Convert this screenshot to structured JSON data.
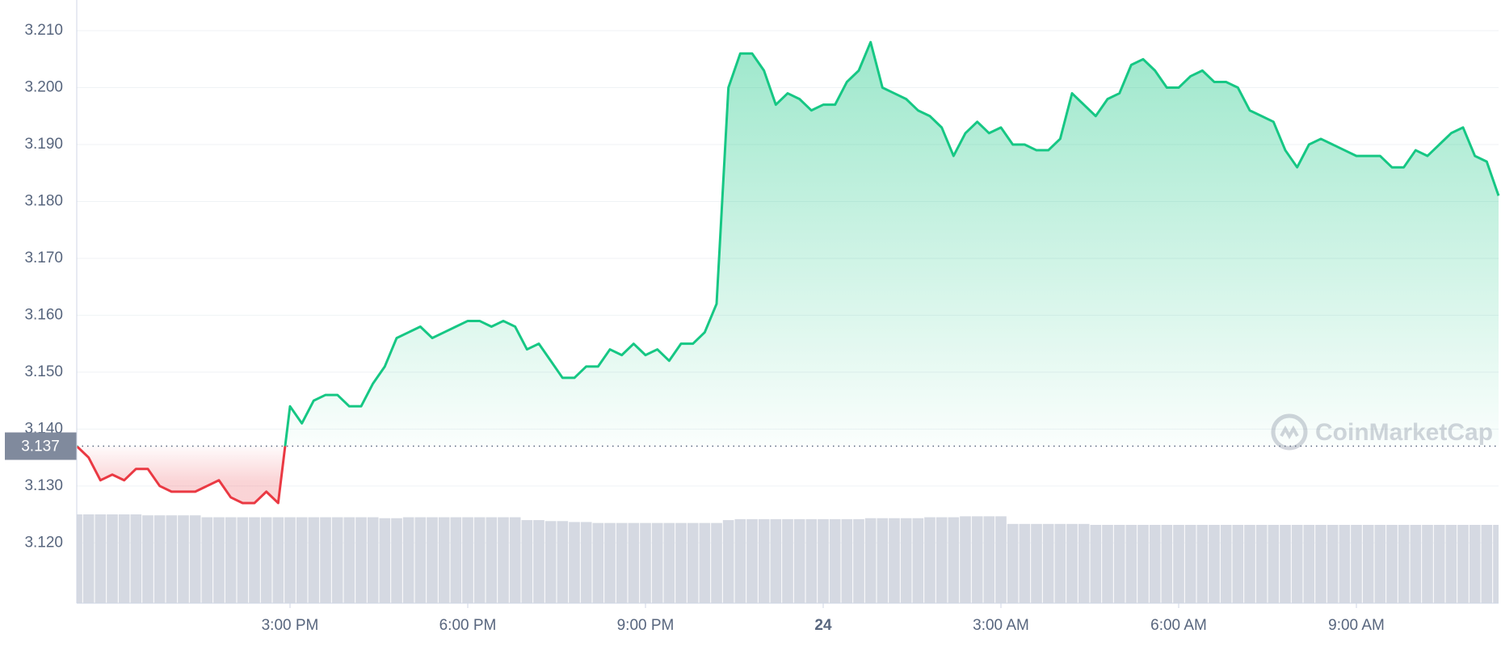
{
  "chart_data": {
    "type": "line",
    "x": [
      11.4,
      11.6,
      11.8,
      12.0,
      12.2,
      12.4,
      12.6,
      12.8,
      13.0,
      13.2,
      13.4,
      13.6,
      13.8,
      14.0,
      14.2,
      14.4,
      14.6,
      14.8,
      15.0,
      15.2,
      15.4,
      15.6,
      15.8,
      16.0,
      16.2,
      16.4,
      16.6,
      16.8,
      17.0,
      17.2,
      17.4,
      17.6,
      17.8,
      18.0,
      18.2,
      18.4,
      18.6,
      18.8,
      19.0,
      19.2,
      19.4,
      19.6,
      19.8,
      20.0,
      20.2,
      20.4,
      20.6,
      20.8,
      21.0,
      21.2,
      21.4,
      21.6,
      21.8,
      22.0,
      22.2,
      22.4,
      22.6,
      22.8,
      23.0,
      23.2,
      23.4,
      23.6,
      23.8,
      24.0,
      24.2,
      24.4,
      24.6,
      24.8,
      25.0,
      25.2,
      25.4,
      25.6,
      25.8,
      26.0,
      26.2,
      26.4,
      26.6,
      26.8,
      27.0,
      27.2,
      27.4,
      27.6,
      27.8,
      28.0,
      28.2,
      28.4,
      28.6,
      28.8,
      29.0,
      29.2,
      29.4,
      29.6,
      29.8,
      30.0,
      30.2,
      30.4,
      30.6,
      30.8,
      31.0,
      31.2,
      31.4,
      31.6,
      31.8,
      32.0,
      32.2,
      32.4,
      32.6,
      32.8,
      33.0,
      33.2,
      33.4,
      33.6,
      33.8,
      34.0,
      34.2,
      34.4,
      34.6,
      34.8,
      35.0,
      35.2,
      35.4
    ],
    "series": [
      {
        "name": "Price",
        "up_color": "#16c784",
        "down_color": "#ea3943",
        "values": [
          3.137,
          3.135,
          3.131,
          3.132,
          3.131,
          3.133,
          3.133,
          3.13,
          3.129,
          3.129,
          3.129,
          3.13,
          3.131,
          3.128,
          3.127,
          3.127,
          3.129,
          3.127,
          3.144,
          3.141,
          3.145,
          3.146,
          3.146,
          3.144,
          3.144,
          3.148,
          3.151,
          3.156,
          3.157,
          3.158,
          3.156,
          3.157,
          3.158,
          3.159,
          3.159,
          3.158,
          3.159,
          3.158,
          3.154,
          3.155,
          3.152,
          3.149,
          3.149,
          3.151,
          3.151,
          3.154,
          3.153,
          3.155,
          3.153,
          3.154,
          3.152,
          3.155,
          3.155,
          3.157,
          3.162,
          3.2,
          3.206,
          3.206,
          3.203,
          3.197,
          3.199,
          3.198,
          3.196,
          3.197,
          3.197,
          3.201,
          3.203,
          3.208,
          3.2,
          3.199,
          3.198,
          3.196,
          3.195,
          3.193,
          3.188,
          3.192,
          3.194,
          3.192,
          3.193,
          3.19,
          3.19,
          3.189,
          3.189,
          3.191,
          3.199,
          3.197,
          3.195,
          3.198,
          3.199,
          3.204,
          3.205,
          3.203,
          3.2,
          3.2,
          3.202,
          3.203,
          3.201,
          3.201,
          3.2,
          3.196,
          3.195,
          3.194,
          3.189,
          3.186,
          3.19,
          3.191,
          3.19,
          3.189,
          3.188,
          3.188,
          3.188,
          3.186,
          3.186,
          3.189,
          3.188,
          3.19,
          3.192,
          3.193,
          3.188,
          3.187,
          3.181
        ]
      },
      {
        "name": "Volume",
        "color": "#d5d9e2",
        "values": [
          93,
          93,
          93,
          93,
          93,
          93,
          92,
          92,
          92,
          92,
          92,
          90,
          90,
          90,
          90,
          90,
          90,
          90,
          90,
          90,
          90,
          90,
          90,
          90,
          90,
          90,
          89,
          89,
          90,
          90,
          90,
          90,
          90,
          90,
          90,
          90,
          90,
          90,
          87,
          87,
          86,
          86,
          85,
          85,
          84,
          84,
          84,
          84,
          84,
          84,
          84,
          84,
          84,
          84,
          84,
          87,
          88,
          88,
          88,
          88,
          88,
          88,
          88,
          88,
          88,
          88,
          88,
          89,
          89,
          89,
          89,
          89,
          90,
          90,
          90,
          91,
          91,
          91,
          91,
          83,
          83,
          83,
          83,
          83,
          83,
          83,
          82,
          82,
          82,
          82,
          82,
          82,
          82,
          82,
          82,
          82,
          82,
          82,
          82,
          82,
          82,
          82,
          82,
          82,
          82,
          82,
          82,
          82,
          82,
          82,
          82,
          82,
          82,
          82,
          82,
          82,
          82,
          82,
          82,
          82,
          82
        ]
      }
    ],
    "xlim": [
      11.4,
      35.4
    ],
    "xticks": [
      {
        "value": 15,
        "label": "3:00 PM"
      },
      {
        "value": 18,
        "label": "6:00 PM"
      },
      {
        "value": 21,
        "label": "9:00 PM"
      },
      24,
      {
        "value": 27,
        "label": "3:00 AM"
      },
      {
        "value": 30,
        "label": "6:00 AM"
      },
      {
        "value": 33,
        "label": "9:00 AM"
      }
    ],
    "ylim": [
      3.1094,
      3.2154
    ],
    "yticks": [
      {
        "value": 3.12,
        "label": "3.120"
      },
      {
        "value": 3.13,
        "label": "3.130"
      },
      {
        "value": 3.14,
        "label": "3.140"
      },
      {
        "value": 3.15,
        "label": "3.150"
      },
      {
        "value": 3.16,
        "label": "3.160"
      },
      {
        "value": 3.17,
        "label": "3.170"
      },
      {
        "value": 3.18,
        "label": "3.180"
      },
      {
        "value": 3.19,
        "label": "3.190"
      },
      {
        "value": 3.2,
        "label": "3.200"
      },
      {
        "value": 3.21,
        "label": "3.210"
      }
    ],
    "baseline": 3.137,
    "watermark": "CoinMarketCap",
    "grid": true
  }
}
